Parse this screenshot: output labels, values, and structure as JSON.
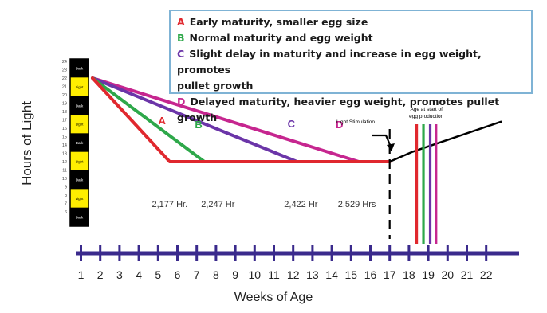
{
  "colors": {
    "A": "#e0282e",
    "B": "#2ea84a",
    "C": "#6b35a8",
    "D": "#c6268f",
    "axis": "#3a2a8c",
    "bar_black": "#000000",
    "bar_yellow": "#ffee00",
    "legend_border": "#7fb3d5"
  },
  "legend": [
    {
      "key": "A",
      "text": "Early maturity, smaller egg size"
    },
    {
      "key": "B",
      "text": "Normal maturity and egg weight"
    },
    {
      "key": "C",
      "text": "Slight delay in maturity and increase in egg weight, promotes"
    },
    {
      "key": "",
      "text": "pullet growth"
    },
    {
      "key": "D",
      "text": "Delayed maturity, heavier egg weight, promotes pullet growth"
    }
  ],
  "chart_data": {
    "type": "line",
    "xlabel": "Weeks of Age",
    "ylabel": "Hours of Light",
    "xlim": [
      1,
      22
    ],
    "ylim": [
      6,
      24
    ],
    "x_ticks": [
      1,
      2,
      3,
      4,
      5,
      6,
      7,
      8,
      9,
      10,
      11,
      12,
      13,
      14,
      15,
      16,
      17,
      18,
      19,
      20,
      21,
      22
    ],
    "y_ticks": [
      6,
      7,
      8,
      9,
      10,
      11,
      12,
      13,
      14,
      15,
      16,
      17,
      18,
      19,
      20,
      21,
      22,
      23,
      24
    ],
    "light_bar_labels": [
      "Light",
      "Dark"
    ],
    "series": [
      {
        "name": "A",
        "points": [
          [
            1.6,
            22
          ],
          [
            5.6,
            12
          ],
          [
            17,
            12
          ]
        ]
      },
      {
        "name": "B",
        "points": [
          [
            1.6,
            22
          ],
          [
            7.4,
            12
          ],
          [
            17,
            12
          ]
        ]
      },
      {
        "name": "C",
        "points": [
          [
            1.6,
            22
          ],
          [
            12.2,
            12
          ],
          [
            17,
            12
          ]
        ]
      },
      {
        "name": "D",
        "points": [
          [
            1.6,
            22
          ],
          [
            15.4,
            12
          ],
          [
            17,
            12
          ]
        ]
      }
    ],
    "series_labels": [
      {
        "name": "A",
        "x": 5.2,
        "y": 16.5
      },
      {
        "name": "B",
        "x": 7.1,
        "y": 16.0
      },
      {
        "name": "C",
        "x": 11.9,
        "y": 16.1
      },
      {
        "name": "D",
        "x": 14.4,
        "y": 16.0
      }
    ],
    "stimulation_line": {
      "points": [
        [
          17,
          12
        ],
        [
          18.2,
          13.2
        ],
        [
          22.8,
          16.8
        ]
      ]
    },
    "light_stimulation": {
      "x": 17,
      "label": "Light Stimulation"
    },
    "egg_production": {
      "label_line1": "Age at start of",
      "label_line2": "egg production",
      "lines": [
        {
          "name": "A",
          "x": 18.4
        },
        {
          "name": "B",
          "x": 18.75
        },
        {
          "name": "C",
          "x": 19.1
        },
        {
          "name": "D",
          "x": 19.4
        }
      ]
    },
    "annotations": [
      {
        "text": "2,177 Hr.",
        "x": 5.6
      },
      {
        "text": "2,247 Hr",
        "x": 8.1
      },
      {
        "text": "2,422 Hr",
        "x": 12.4
      },
      {
        "text": "2,529 Hrs",
        "x": 15.3
      }
    ]
  }
}
